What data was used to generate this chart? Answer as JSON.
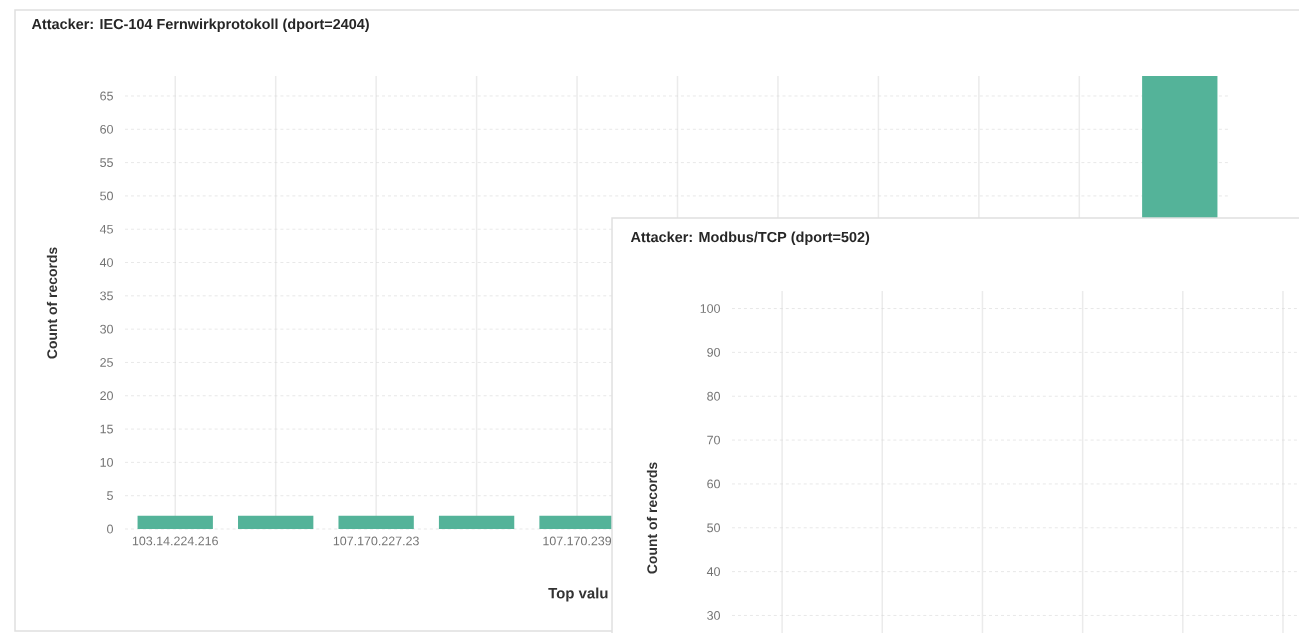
{
  "chart_data": [
    {
      "type": "bar",
      "title": "Attacker: IEC-104 Fernwirkprotokoll (dport=2404)",
      "xlabel": "Top valu",
      "ylabel": "Count of records",
      "categories": [
        "103.14.224.216",
        null,
        "107.170.227.23",
        null,
        "107.170.239",
        null,
        null,
        null,
        null,
        null,
        null
      ],
      "values": [
        2,
        2,
        2,
        2,
        2,
        null,
        null,
        null,
        null,
        null,
        68
      ],
      "color": "#54b399",
      "ylim": [
        0,
        68
      ],
      "yticks": [
        0,
        5,
        10,
        15,
        20,
        25,
        30,
        35,
        40,
        45,
        50,
        55,
        60,
        65
      ],
      "grid": true
    },
    {
      "type": "bar",
      "title": "Attacker: Modbus/TCP (dport=502)",
      "ylabel": "Count of records",
      "categories": [
        null,
        null,
        null,
        null,
        null,
        null
      ],
      "values": [
        null,
        null,
        null,
        null,
        null,
        null
      ],
      "ylim": [
        26,
        104
      ],
      "yticks": [
        30,
        40,
        50,
        60,
        70,
        80,
        90,
        100
      ],
      "grid": true,
      "tick_labels": "y"
    }
  ]
}
